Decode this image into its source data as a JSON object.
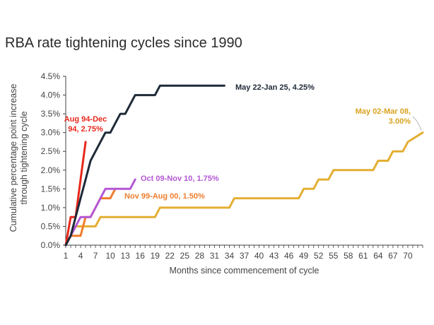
{
  "colors": {
    "may22": "#1f2a38",
    "aug94": "#e8281b",
    "oct09": "#b457d6",
    "nov99": "#ef7d2d",
    "may02": "#e3ae33",
    "axis": "#404040",
    "grid": "#e0e0e0"
  },
  "chart_data": {
    "type": "line",
    "title": "RBA rate tightening cycles since 1990",
    "xlabel": "Months since commencement of cycle",
    "ylabel": "Cumulative percentage point increase through tightening cycle",
    "ylabel_lines": [
      "Cumulative percentage point increase",
      "through tightening cycle"
    ],
    "xlim": [
      1,
      73
    ],
    "ylim": [
      0,
      4.5
    ],
    "x_ticks": [
      1,
      4,
      7,
      10,
      13,
      16,
      19,
      22,
      25,
      28,
      31,
      34,
      37,
      40,
      43,
      46,
      49,
      52,
      55,
      58,
      61,
      64,
      67,
      70
    ],
    "x_tick_labels": [
      "1",
      "4",
      "7",
      "10",
      "13",
      "16",
      "19",
      "22",
      "25",
      "28",
      "31",
      "34",
      "37",
      "40",
      "43",
      "46",
      "49",
      "52",
      "55",
      "58",
      "61",
      "64",
      "67",
      "70"
    ],
    "y_ticks": [
      0,
      0.5,
      1.0,
      1.5,
      2.0,
      2.5,
      3.0,
      3.5,
      4.0,
      4.5
    ],
    "y_tick_labels": [
      "0.0%",
      "0.5%",
      "1.0%",
      "1.5%",
      "2.0%",
      "2.5%",
      "3.0%",
      "3.5%",
      "4.0%",
      "4.5%"
    ],
    "grid": false,
    "series": [
      {
        "key": "may02",
        "name": "May 02-Mar 08, 3.00%",
        "label_lines": [
          "May 02-Mar 08,",
          "3.00%"
        ],
        "color": "#e3ae33",
        "x": [
          1,
          2,
          3,
          6,
          7,
          8,
          9,
          19,
          20,
          34,
          35,
          48,
          49,
          50,
          51,
          52,
          53,
          54,
          55,
          63,
          64,
          65,
          66,
          67,
          68,
          69,
          70,
          73
        ],
        "y": [
          0,
          0.25,
          0.5,
          0.5,
          0.5,
          0.75,
          0.75,
          0.75,
          1.0,
          1.0,
          1.25,
          1.25,
          1.5,
          1.5,
          1.5,
          1.75,
          1.75,
          1.75,
          2.0,
          2.0,
          2.25,
          2.25,
          2.25,
          2.5,
          2.5,
          2.5,
          2.75,
          3.0
        ]
      },
      {
        "key": "nov99",
        "name": "Nov 99-Aug 00, 1.50%",
        "label_lines": [
          "Nov 99-Aug 00, 1.50%"
        ],
        "color": "#ef7d2d",
        "x": [
          1,
          2,
          3,
          4,
          5,
          6,
          7,
          8,
          9,
          10,
          11
        ],
        "y": [
          0,
          0.25,
          0.25,
          0.25,
          0.75,
          0.75,
          1.0,
          1.25,
          1.25,
          1.25,
          1.5
        ]
      },
      {
        "key": "oct09",
        "name": "Oct 09-Nov 10, 1.75%",
        "label_lines": [
          "Oct 09-Nov 10, 1.75%"
        ],
        "color": "#b457d6",
        "x": [
          1,
          2,
          3,
          4,
          5,
          6,
          7,
          8,
          9,
          10,
          11,
          12,
          13,
          14,
          15
        ],
        "y": [
          0,
          0.25,
          0.5,
          0.75,
          0.75,
          0.75,
          1.0,
          1.25,
          1.5,
          1.5,
          1.5,
          1.5,
          1.5,
          1.5,
          1.75
        ]
      },
      {
        "key": "aug94",
        "name": "Aug 94-Dec 94, 2.75%",
        "label_lines": [
          "Aug 94-Dec",
          "94, 2.75%"
        ],
        "color": "#e8281b",
        "x": [
          1,
          2,
          3,
          4,
          5
        ],
        "y": [
          0,
          0.75,
          0.75,
          1.75,
          2.75
        ]
      },
      {
        "key": "may22",
        "name": "May 22-Jan 25, 4.25%",
        "label_lines": [
          "May 22-Jan 25, 4.25%"
        ],
        "color": "#1f2a38",
        "x": [
          1,
          2,
          3,
          4,
          5,
          6,
          7,
          8,
          9,
          10,
          11,
          12,
          13,
          14,
          15,
          16,
          17,
          18,
          19,
          20,
          33
        ],
        "y": [
          0,
          0.25,
          0.75,
          1.25,
          1.75,
          2.25,
          2.5,
          2.75,
          3.0,
          3.0,
          3.25,
          3.5,
          3.5,
          3.75,
          4.0,
          4.0,
          4.0,
          4.0,
          4.0,
          4.25,
          4.25
        ]
      }
    ]
  }
}
